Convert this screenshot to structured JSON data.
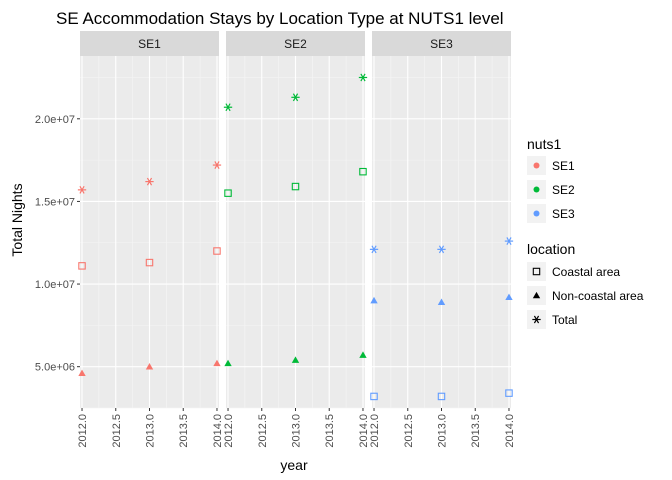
{
  "chart_data": {
    "type": "scatter",
    "title": "SE Accommodation Stays by Location Type at NUTS1 level",
    "xlabel": "year",
    "ylabel": "Total Nights",
    "facets": [
      "SE1",
      "SE2",
      "SE3"
    ],
    "xlim": [
      2011.97,
      2014.03
    ],
    "ylim": [
      2500000,
      23800000
    ],
    "x_ticks": [
      2012.0,
      2012.5,
      2013.0,
      2013.5,
      2014.0
    ],
    "x_tick_labels": [
      "2012.0",
      "2012.5",
      "2013.0",
      "2013.5",
      "2014.0"
    ],
    "y_ticks": [
      5000000,
      10000000,
      15000000,
      20000000
    ],
    "y_tick_labels": [
      "5.0e+06",
      "1.0e+07",
      "1.5e+07",
      "2.0e+07"
    ],
    "grid": true,
    "legend_position": "right",
    "color_legend": {
      "title": "nuts1",
      "entries": [
        {
          "label": "SE1",
          "color": "#F8766D"
        },
        {
          "label": "SE2",
          "color": "#00BA38"
        },
        {
          "label": "SE3",
          "color": "#619CFF"
        }
      ]
    },
    "shape_legend": {
      "title": "location",
      "entries": [
        {
          "label": "Coastal area",
          "shape": "square-open"
        },
        {
          "label": "Non-coastal area",
          "shape": "triangle"
        },
        {
          "label": "Total",
          "shape": "asterisk"
        }
      ]
    },
    "series": [
      {
        "facet": "SE1",
        "location": "Coastal area",
        "x": [
          2012,
          2013,
          2014
        ],
        "y": [
          11100000,
          11300000,
          12000000
        ]
      },
      {
        "facet": "SE1",
        "location": "Non-coastal area",
        "x": [
          2012,
          2013,
          2014
        ],
        "y": [
          4600000,
          5000000,
          5200000
        ]
      },
      {
        "facet": "SE1",
        "location": "Total",
        "x": [
          2012,
          2013,
          2014
        ],
        "y": [
          15700000,
          16200000,
          17200000
        ]
      },
      {
        "facet": "SE2",
        "location": "Coastal area",
        "x": [
          2012,
          2013,
          2014
        ],
        "y": [
          15500000,
          15900000,
          16800000
        ]
      },
      {
        "facet": "SE2",
        "location": "Non-coastal area",
        "x": [
          2012,
          2013,
          2014
        ],
        "y": [
          5200000,
          5400000,
          5700000
        ]
      },
      {
        "facet": "SE2",
        "location": "Total",
        "x": [
          2012,
          2013,
          2014
        ],
        "y": [
          20700000,
          21300000,
          22500000
        ]
      },
      {
        "facet": "SE3",
        "location": "Coastal area",
        "x": [
          2012,
          2013,
          2014
        ],
        "y": [
          3200000,
          3200000,
          3400000
        ]
      },
      {
        "facet": "SE3",
        "location": "Non-coastal area",
        "x": [
          2012,
          2013,
          2014
        ],
        "y": [
          9000000,
          8900000,
          9200000
        ]
      },
      {
        "facet": "SE3",
        "location": "Total",
        "x": [
          2012,
          2013,
          2014
        ],
        "y": [
          12100000,
          12100000,
          12600000
        ]
      }
    ]
  }
}
